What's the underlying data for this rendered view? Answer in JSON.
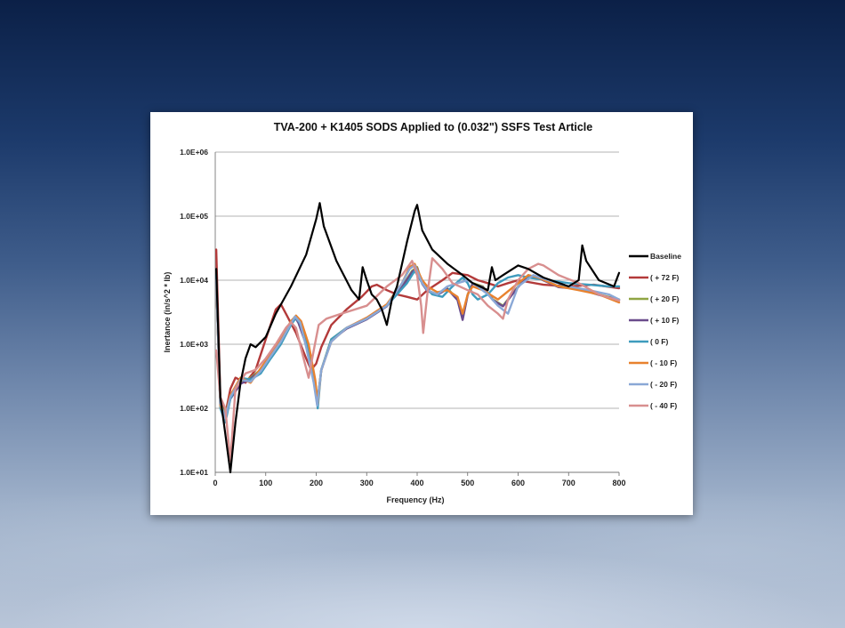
{
  "chart_data": {
    "type": "line",
    "title": "TVA-200 + K1405 SODS Applied to (0.032\") SSFS Test Article",
    "xlabel": "Frequency (Hz)",
    "ylabel": "Inertance (in/s^2 * lb)",
    "xlim": [
      0,
      800
    ],
    "ylim": [
      10,
      1000000
    ],
    "yscale": "log",
    "grid": "horizontal",
    "legend_position": "right",
    "x_ticks": [
      "0",
      "100",
      "200",
      "300",
      "400",
      "500",
      "600",
      "700",
      "800"
    ],
    "y_ticks": [
      "1.0E+01",
      "1.0E+02",
      "1.0E+03",
      "1.0E+04",
      "1.0E+05",
      "1.0E+06"
    ],
    "series": [
      {
        "name": "Baseline",
        "color": "#000000",
        "x": [
          2,
          10,
          20,
          30,
          40,
          50,
          60,
          70,
          80,
          100,
          120,
          150,
          180,
          200,
          207,
          215,
          240,
          270,
          285,
          292,
          300,
          310,
          320,
          330,
          340,
          350,
          360,
          380,
          395,
          400,
          410,
          430,
          460,
          490,
          510,
          540,
          548,
          555,
          570,
          600,
          620,
          650,
          700,
          720,
          727,
          735,
          760,
          790,
          800
        ],
        "y": [
          15000,
          150,
          40,
          10,
          60,
          250,
          600,
          1000,
          900,
          1300,
          3000,
          8000,
          25000,
          90000,
          160000,
          70000,
          20000,
          7000,
          5000,
          16000,
          10000,
          6000,
          5000,
          3500,
          2000,
          5000,
          8000,
          40000,
          120000,
          150000,
          60000,
          30000,
          18000,
          12000,
          9000,
          7000,
          16000,
          10000,
          12000,
          17000,
          15000,
          11000,
          8000,
          10000,
          35000,
          20000,
          10000,
          8000,
          13000
        ]
      },
      {
        "name": "( + 72 F)",
        "color": "#b33a3a",
        "x": [
          2,
          10,
          20,
          30,
          40,
          60,
          80,
          100,
          120,
          130,
          140,
          160,
          180,
          190,
          200,
          210,
          230,
          260,
          290,
          310,
          320,
          340,
          360,
          380,
          400,
          420,
          450,
          470,
          500,
          520,
          540,
          560,
          580,
          600,
          650,
          700,
          750,
          800
        ],
        "y": [
          30000,
          150,
          80,
          200,
          300,
          250,
          400,
          1200,
          3500,
          4200,
          3000,
          1500,
          600,
          400,
          500,
          900,
          2000,
          3500,
          5500,
          8000,
          8500,
          7000,
          6000,
          5500,
          5000,
          7000,
          10000,
          13000,
          12000,
          10000,
          9000,
          8000,
          9000,
          10000,
          8500,
          8000,
          8500,
          7500
        ]
      },
      {
        "name": "( + 20 F)",
        "color": "#8fa543",
        "x": [
          2,
          10,
          20,
          30,
          50,
          70,
          90,
          110,
          130,
          150,
          158,
          165,
          180,
          195,
          202,
          210,
          230,
          260,
          300,
          340,
          370,
          390,
          400,
          410,
          420,
          440,
          460,
          480,
          490,
          500,
          510,
          530,
          550,
          570,
          600,
          620,
          640,
          680,
          720,
          760,
          800
        ],
        "y": [
          10000,
          120,
          80,
          150,
          250,
          300,
          400,
          700,
          1200,
          2200,
          2700,
          2200,
          1000,
          300,
          120,
          400,
          1200,
          1800,
          2500,
          4000,
          8000,
          14000,
          16000,
          9000,
          7000,
          6000,
          7500,
          5000,
          2500,
          6000,
          9000,
          8000,
          5000,
          4000,
          8000,
          12000,
          11000,
          8000,
          7500,
          6000,
          5000
        ]
      },
      {
        "name": "( + 10 F)",
        "color": "#6a4c8c",
        "x": [
          2,
          10,
          20,
          30,
          50,
          70,
          90,
          110,
          130,
          150,
          158,
          165,
          180,
          195,
          202,
          210,
          230,
          260,
          300,
          340,
          370,
          390,
          400,
          410,
          420,
          440,
          460,
          480,
          490,
          500,
          510,
          530,
          550,
          570,
          600,
          620,
          640,
          680,
          720,
          760,
          800
        ],
        "y": [
          10000,
          110,
          75,
          140,
          240,
          290,
          390,
          680,
          1150,
          2150,
          2650,
          2150,
          980,
          290,
          115,
          390,
          1150,
          1750,
          2450,
          3900,
          7800,
          13500,
          15500,
          8800,
          6800,
          5900,
          7300,
          4900,
          2400,
          5900,
          8800,
          7800,
          4900,
          3900,
          7800,
          11800,
          10800,
          7800,
          7300,
          5900,
          4900
        ]
      },
      {
        "name": "( 0 F)",
        "color": "#3e9bbd",
        "x": [
          2,
          10,
          20,
          30,
          50,
          70,
          90,
          110,
          130,
          150,
          160,
          170,
          185,
          198,
          203,
          210,
          230,
          260,
          300,
          340,
          380,
          395,
          410,
          430,
          450,
          470,
          490,
          500,
          510,
          520,
          540,
          560,
          580,
          600,
          620,
          660,
          700,
          740,
          780,
          800
        ],
        "y": [
          12000,
          100,
          60,
          140,
          300,
          280,
          350,
          600,
          1000,
          2000,
          2600,
          2000,
          800,
          250,
          100,
          400,
          1200,
          1800,
          2500,
          4000,
          9000,
          14000,
          9000,
          6000,
          5500,
          8000,
          11000,
          9000,
          6000,
          5000,
          6000,
          9000,
          11000,
          12000,
          11000,
          10000,
          9000,
          8500,
          8000,
          8000
        ]
      },
      {
        "name": "( - 10 F)",
        "color": "#e8822e",
        "x": [
          2,
          10,
          20,
          30,
          50,
          70,
          90,
          110,
          130,
          150,
          160,
          170,
          185,
          198,
          203,
          210,
          230,
          260,
          300,
          340,
          370,
          385,
          395,
          410,
          420,
          440,
          460,
          480,
          490,
          500,
          510,
          530,
          560,
          600,
          620,
          640,
          680,
          720,
          760,
          800
        ],
        "y": [
          10000,
          110,
          70,
          160,
          300,
          250,
          420,
          700,
          1200,
          2300,
          2800,
          2300,
          1000,
          280,
          120,
          400,
          1100,
          1800,
          2600,
          4200,
          9000,
          16000,
          18000,
          10000,
          8000,
          6500,
          7000,
          5500,
          3000,
          6000,
          8000,
          7000,
          5000,
          9000,
          12000,
          11000,
          8000,
          7000,
          6000,
          4500
        ]
      },
      {
        "name": "( - 20 F)",
        "color": "#8aa8d6",
        "x": [
          2,
          10,
          20,
          30,
          50,
          70,
          90,
          110,
          130,
          150,
          158,
          168,
          180,
          195,
          202,
          210,
          230,
          260,
          300,
          340,
          370,
          385,
          395,
          410,
          420,
          440,
          460,
          480,
          500,
          520,
          540,
          560,
          580,
          600,
          630,
          660,
          700,
          740,
          780,
          800
        ],
        "y": [
          10000,
          120,
          70,
          150,
          280,
          260,
          380,
          650,
          1100,
          2100,
          2700,
          2200,
          900,
          250,
          110,
          400,
          1100,
          1800,
          2500,
          4000,
          9000,
          15000,
          17000,
          9000,
          7000,
          6000,
          8000,
          9000,
          10000,
          8000,
          6000,
          4000,
          3000,
          8000,
          12000,
          10000,
          8000,
          7000,
          6000,
          5000
        ]
      },
      {
        "name": "( - 40 F)",
        "color": "#d88f8f",
        "x": [
          2,
          10,
          20,
          30,
          40,
          60,
          80,
          100,
          120,
          140,
          150,
          160,
          175,
          185,
          195,
          205,
          220,
          250,
          300,
          340,
          370,
          390,
          400,
          408,
          412,
          420,
          430,
          450,
          470,
          500,
          520,
          540,
          560,
          570,
          580,
          600,
          620,
          640,
          650,
          680,
          720,
          760,
          800
        ],
        "y": [
          800,
          150,
          100,
          15,
          200,
          350,
          400,
          600,
          1000,
          1800,
          2200,
          1800,
          600,
          300,
          800,
          2000,
          2500,
          3000,
          4000,
          8000,
          12000,
          20000,
          12000,
          4000,
          1500,
          6000,
          22000,
          15000,
          9000,
          7000,
          6000,
          4000,
          3000,
          2500,
          5000,
          10000,
          15000,
          18000,
          17000,
          12000,
          9000,
          6000,
          4800
        ]
      }
    ]
  }
}
